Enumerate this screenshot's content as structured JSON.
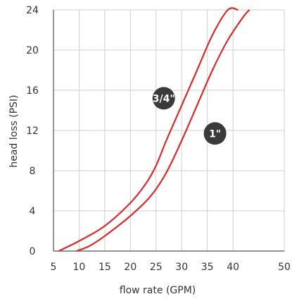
{
  "chart_data": {
    "type": "line",
    "xlabel": "flow rate (GPM)",
    "ylabel": "head loss (PSI)",
    "xlim": [
      5,
      50
    ],
    "ylim": [
      0,
      24
    ],
    "x_ticks": [
      5,
      10,
      15,
      20,
      25,
      30,
      35,
      40,
      50
    ],
    "y_ticks": [
      0,
      4,
      8,
      12,
      16,
      20,
      24
    ],
    "grid": true,
    "line_color": "#d92b2b",
    "grid_color": "#cfcfcf",
    "badge_color": "#3a3a3a",
    "series": [
      {
        "name": "3/4\"",
        "x": [
          6,
          10,
          15,
          20,
          23,
          25,
          27,
          30,
          33,
          36,
          39,
          41
        ],
        "y": [
          0,
          1.0,
          2.5,
          4.8,
          6.7,
          8.5,
          11.0,
          14.5,
          18.0,
          21.5,
          24.0,
          24.0
        ]
      },
      {
        "name": "1\"",
        "x": [
          9.5,
          12,
          15,
          20,
          24,
          27,
          30,
          33,
          36,
          39,
          42,
          43.2
        ],
        "y": [
          0,
          0.5,
          1.5,
          3.5,
          5.5,
          7.8,
          11.0,
          14.5,
          18.0,
          21.0,
          23.3,
          24.0
        ]
      }
    ],
    "annotations": [
      {
        "text": "3/4\"",
        "series": 0,
        "x": 26.5,
        "y": 15.2
      },
      {
        "text": "1\"",
        "series": 1,
        "x": 36.5,
        "y": 11.7
      }
    ]
  }
}
